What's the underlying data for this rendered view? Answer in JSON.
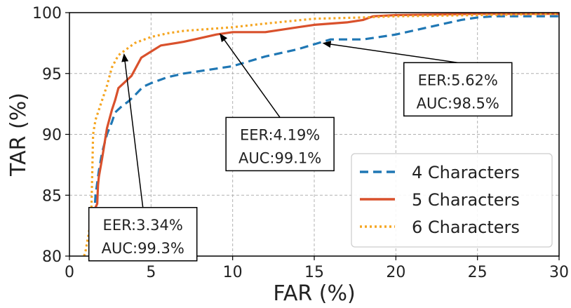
{
  "chart_data": {
    "type": "line",
    "xlabel": "FAR (%)",
    "ylabel": "TAR (%)",
    "xlim": [
      0,
      30
    ],
    "ylim": [
      80,
      100
    ],
    "xticks": [
      0,
      5,
      10,
      15,
      20,
      25,
      30
    ],
    "yticks": [
      80,
      85,
      90,
      95,
      100
    ],
    "grid": true,
    "legend_position": "lower-right",
    "series": [
      {
        "name": "4 Characters",
        "color": "#1f77b4",
        "style": "dashed",
        "x": [
          1.4,
          1.5,
          1.6,
          1.8,
          2.0,
          2.3,
          2.6,
          2.8,
          3.2,
          3.6,
          4.0,
          4.5,
          5.0,
          6.0,
          7.0,
          8.0,
          9.0,
          10.0,
          11.0,
          12.0,
          13.0,
          14.0,
          15.0,
          16.0,
          17.0,
          18.0,
          19.0,
          20.0,
          21.0,
          22.0,
          23.0,
          24.0,
          25.0,
          26.0,
          27.0,
          30.0
        ],
        "y": [
          80,
          83,
          85,
          87,
          88.5,
          90,
          91,
          91.8,
          92.3,
          92.7,
          93.2,
          93.9,
          94.2,
          94.7,
          95.0,
          95.2,
          95.4,
          95.6,
          96.0,
          96.4,
          96.7,
          97.0,
          97.4,
          97.8,
          97.8,
          97.8,
          98.0,
          98.2,
          98.5,
          98.8,
          99.1,
          99.4,
          99.6,
          99.7,
          99.7,
          99.7
        ]
      },
      {
        "name": "5 Characters",
        "color": "#d9512c",
        "style": "solid",
        "x": [
          1.4,
          1.45,
          1.5,
          1.6,
          1.7,
          1.75,
          1.8,
          2.0,
          2.3,
          2.6,
          2.8,
          3.0,
          3.4,
          3.8,
          4.0,
          4.4,
          5.0,
          5.6,
          7.0,
          8.0,
          9.0,
          10.0,
          11.0,
          12.0,
          13.0,
          14.0,
          15.0,
          16.0,
          17.0,
          18.0,
          18.6,
          20.0,
          25.0,
          30.0
        ],
        "y": [
          80,
          80.5,
          83,
          84,
          84.3,
          85.8,
          86.5,
          88,
          90.5,
          92,
          92.8,
          93.8,
          94.3,
          94.8,
          95.3,
          96.3,
          96.8,
          97.3,
          97.6,
          97.9,
          98.2,
          98.4,
          98.4,
          98.4,
          98.6,
          98.8,
          99.0,
          99.1,
          99.2,
          99.4,
          99.7,
          99.8,
          99.9,
          99.9
        ]
      },
      {
        "name": "6 Characters",
        "color": "#f5a623",
        "style": "dotted",
        "x": [
          0.9,
          1.0,
          1.2,
          1.35,
          1.45,
          1.6,
          1.8,
          2.0,
          2.3,
          2.6,
          3.0,
          3.5,
          4.0,
          5.0,
          6.0,
          7.0,
          8.0,
          10.0,
          12.0,
          15.0,
          18.0,
          20.0,
          25.0,
          30.0
        ],
        "y": [
          80,
          80.5,
          82,
          84,
          90,
          91.2,
          92,
          92.8,
          94.0,
          95.5,
          96.5,
          97.0,
          97.5,
          98.0,
          98.3,
          98.5,
          98.6,
          98.8,
          99.1,
          99.5,
          99.6,
          99.7,
          99.8,
          99.9
        ]
      }
    ],
    "annotations": [
      {
        "line1": "EER:3.34%",
        "line2": "AUC:99.3%",
        "point": [
          3.34,
          96.66
        ],
        "box_at": [
          4.5,
          81.8
        ]
      },
      {
        "line1": "EER:4.19%",
        "line2": "AUC:99.1%",
        "point": [
          9.2,
          98.3
        ],
        "box_at": [
          12.9,
          89.2
        ]
      },
      {
        "line1": "EER:5.62%",
        "line2": "AUC:98.5%",
        "point": [
          15.5,
          97.5
        ],
        "box_at": [
          23.8,
          93.7
        ]
      }
    ]
  }
}
